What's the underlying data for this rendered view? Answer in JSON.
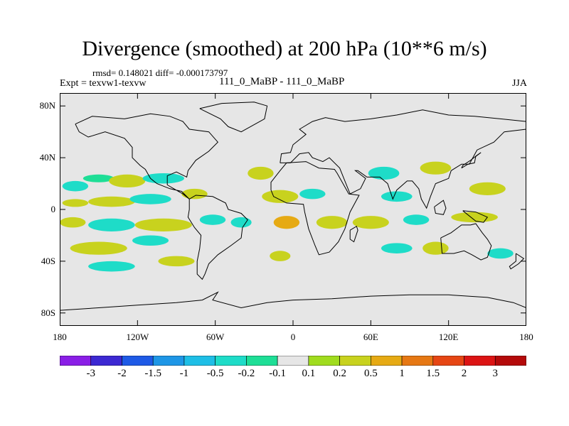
{
  "chart_data": {
    "type": "heatmap",
    "title": "Divergence (smoothed) at 200 hPa (10**6 m/s)",
    "stats_text": "rmsd= 0.148021 diff= -0.000173797",
    "experiment_text": "Expt = texvw1-texvw",
    "case_text": "111_0_MaBP - 111_0_MaBP",
    "season": "JJA",
    "xlim": [
      -180,
      180
    ],
    "ylim": [
      -90,
      90
    ],
    "x_ticks": [
      {
        "value": -180,
        "label": "180"
      },
      {
        "value": -120,
        "label": "120W"
      },
      {
        "value": -60,
        "label": "60W"
      },
      {
        "value": 0,
        "label": "0"
      },
      {
        "value": 60,
        "label": "60E"
      },
      {
        "value": 120,
        "label": "120E"
      },
      {
        "value": 180,
        "label": "180"
      }
    ],
    "y_ticks": [
      {
        "value": 80,
        "label": "80N"
      },
      {
        "value": 40,
        "label": "40N"
      },
      {
        "value": 0,
        "label": "0"
      },
      {
        "value": -40,
        "label": "40S"
      },
      {
        "value": -80,
        "label": "80S"
      }
    ],
    "colorbar": {
      "levels": [
        "-3",
        "-2",
        "-1.5",
        "-1",
        "-0.5",
        "-0.2",
        "-0.1",
        "0.1",
        "0.2",
        "0.5",
        "1",
        "1.5",
        "2",
        "3"
      ],
      "colors": [
        "#8a1ee6",
        "#3c28d2",
        "#1e5ae6",
        "#1e96e6",
        "#1ebee6",
        "#1edcc8",
        "#1ede96",
        "#e6e6e6",
        "#a0dc1e",
        "#c8d21e",
        "#e6aa14",
        "#e67814",
        "#e64614",
        "#dc1414",
        "#b40a0a"
      ]
    },
    "field_blobs": [
      {
        "lon": -168,
        "lat": 18,
        "rx": 10,
        "ry": 4,
        "level": -0.3
      },
      {
        "lon": -150,
        "lat": 24,
        "rx": 12,
        "ry": 3,
        "level": -0.2
      },
      {
        "lon": -128,
        "lat": 22,
        "rx": 14,
        "ry": 5,
        "level": 0.3
      },
      {
        "lon": -100,
        "lat": 24,
        "rx": 16,
        "ry": 4,
        "level": -0.3
      },
      {
        "lon": -168,
        "lat": 5,
        "rx": 10,
        "ry": 3,
        "level": 0.25
      },
      {
        "lon": -140,
        "lat": 6,
        "rx": 18,
        "ry": 4,
        "level": 0.3
      },
      {
        "lon": -110,
        "lat": 8,
        "rx": 16,
        "ry": 4,
        "level": -0.3
      },
      {
        "lon": -76,
        "lat": 12,
        "rx": 10,
        "ry": 4,
        "level": 0.3
      },
      {
        "lon": -170,
        "lat": -10,
        "rx": 10,
        "ry": 4,
        "level": 0.3
      },
      {
        "lon": -140,
        "lat": -12,
        "rx": 18,
        "ry": 5,
        "level": -0.3
      },
      {
        "lon": -100,
        "lat": -12,
        "rx": 22,
        "ry": 5,
        "level": 0.4
      },
      {
        "lon": -62,
        "lat": -8,
        "rx": 10,
        "ry": 4,
        "level": -0.5
      },
      {
        "lon": -150,
        "lat": -30,
        "rx": 22,
        "ry": 5,
        "level": 0.3
      },
      {
        "lon": -110,
        "lat": -24,
        "rx": 14,
        "ry": 4,
        "level": -0.3
      },
      {
        "lon": -140,
        "lat": -44,
        "rx": 18,
        "ry": 4,
        "level": -0.3
      },
      {
        "lon": -90,
        "lat": -40,
        "rx": 14,
        "ry": 4,
        "level": 0.3
      },
      {
        "lon": -25,
        "lat": 28,
        "rx": 10,
        "ry": 5,
        "level": 0.3
      },
      {
        "lon": -10,
        "lat": 10,
        "rx": 14,
        "ry": 5,
        "level": 0.4
      },
      {
        "lon": 15,
        "lat": 12,
        "rx": 10,
        "ry": 4,
        "level": -0.3
      },
      {
        "lon": -40,
        "lat": -10,
        "rx": 8,
        "ry": 4,
        "level": -0.5
      },
      {
        "lon": -5,
        "lat": -10,
        "rx": 10,
        "ry": 5,
        "level": 0.5
      },
      {
        "lon": 30,
        "lat": -10,
        "rx": 12,
        "ry": 5,
        "level": 0.3
      },
      {
        "lon": -10,
        "lat": -36,
        "rx": 8,
        "ry": 4,
        "level": 0.3
      },
      {
        "lon": 70,
        "lat": 28,
        "rx": 12,
        "ry": 5,
        "level": -0.3
      },
      {
        "lon": 110,
        "lat": 32,
        "rx": 12,
        "ry": 5,
        "level": 0.3
      },
      {
        "lon": 80,
        "lat": 10,
        "rx": 12,
        "ry": 4,
        "level": -0.3
      },
      {
        "lon": 150,
        "lat": 16,
        "rx": 14,
        "ry": 5,
        "level": 0.3
      },
      {
        "lon": 60,
        "lat": -10,
        "rx": 14,
        "ry": 5,
        "level": 0.3
      },
      {
        "lon": 95,
        "lat": -8,
        "rx": 10,
        "ry": 4,
        "level": -0.5
      },
      {
        "lon": 140,
        "lat": -6,
        "rx": 18,
        "ry": 4,
        "level": 0.3
      },
      {
        "lon": 80,
        "lat": -30,
        "rx": 12,
        "ry": 4,
        "level": -0.3
      },
      {
        "lon": 110,
        "lat": -30,
        "rx": 10,
        "ry": 5,
        "level": 0.3
      },
      {
        "lon": 160,
        "lat": -34,
        "rx": 10,
        "ry": 4,
        "level": -0.3
      }
    ],
    "coastlines": [
      {
        "name": "north-america",
        "points": [
          [
            -168,
            66
          ],
          [
            -155,
            72
          ],
          [
            -130,
            70
          ],
          [
            -110,
            74
          ],
          [
            -95,
            72
          ],
          [
            -85,
            68
          ],
          [
            -80,
            62
          ],
          [
            -65,
            60
          ],
          [
            -58,
            52
          ],
          [
            -65,
            45
          ],
          [
            -75,
            38
          ],
          [
            -81,
            30
          ],
          [
            -82,
            25
          ],
          [
            -90,
            29
          ],
          [
            -97,
            26
          ],
          [
            -97,
            19
          ],
          [
            -92,
            16
          ],
          [
            -85,
            12
          ],
          [
            -80,
            8
          ],
          [
            -86,
            14
          ],
          [
            -95,
            16
          ],
          [
            -105,
            20
          ],
          [
            -110,
            24
          ],
          [
            -114,
            31
          ],
          [
            -118,
            34
          ],
          [
            -124,
            40
          ],
          [
            -124,
            48
          ],
          [
            -130,
            55
          ],
          [
            -145,
            60
          ],
          [
            -158,
            56
          ],
          [
            -165,
            60
          ],
          [
            -168,
            66
          ]
        ]
      },
      {
        "name": "south-america",
        "points": [
          [
            -80,
            8
          ],
          [
            -75,
            11
          ],
          [
            -62,
            10
          ],
          [
            -52,
            5
          ],
          [
            -50,
            0
          ],
          [
            -40,
            -3
          ],
          [
            -35,
            -8
          ],
          [
            -39,
            -14
          ],
          [
            -40,
            -22
          ],
          [
            -48,
            -28
          ],
          [
            -58,
            -35
          ],
          [
            -65,
            -42
          ],
          [
            -68,
            -50
          ],
          [
            -70,
            -54
          ],
          [
            -74,
            -50
          ],
          [
            -74,
            -40
          ],
          [
            -72,
            -30
          ],
          [
            -71,
            -20
          ],
          [
            -76,
            -14
          ],
          [
            -81,
            -6
          ],
          [
            -80,
            0
          ],
          [
            -80,
            8
          ]
        ]
      },
      {
        "name": "greenland",
        "points": [
          [
            -72,
            78
          ],
          [
            -55,
            82
          ],
          [
            -30,
            83
          ],
          [
            -20,
            80
          ],
          [
            -22,
            70
          ],
          [
            -40,
            60
          ],
          [
            -50,
            64
          ],
          [
            -56,
            70
          ],
          [
            -72,
            78
          ]
        ]
      },
      {
        "name": "eurasia",
        "points": [
          [
            -10,
            36
          ],
          [
            -9,
            43
          ],
          [
            -2,
            44
          ],
          [
            0,
            50
          ],
          [
            5,
            54
          ],
          [
            10,
            58
          ],
          [
            5,
            62
          ],
          [
            15,
            68
          ],
          [
            25,
            71
          ],
          [
            40,
            68
          ],
          [
            60,
            70
          ],
          [
            80,
            73
          ],
          [
            100,
            77
          ],
          [
            120,
            73
          ],
          [
            140,
            72
          ],
          [
            160,
            70
          ],
          [
            180,
            68
          ],
          [
            180,
            62
          ],
          [
            163,
            60
          ],
          [
            155,
            52
          ],
          [
            142,
            46
          ],
          [
            136,
            35
          ],
          [
            130,
            35
          ],
          [
            122,
            30
          ],
          [
            120,
            24
          ],
          [
            110,
            20
          ],
          [
            106,
            10
          ],
          [
            103,
            1
          ],
          [
            99,
            8
          ],
          [
            97,
            16
          ],
          [
            92,
            22
          ],
          [
            88,
            22
          ],
          [
            80,
            15
          ],
          [
            77,
            8
          ],
          [
            73,
            20
          ],
          [
            67,
            25
          ],
          [
            57,
            25
          ],
          [
            50,
            30
          ],
          [
            48,
            30
          ],
          [
            56,
            24
          ],
          [
            52,
            16
          ],
          [
            44,
            12
          ],
          [
            36,
            32
          ],
          [
            28,
            40
          ],
          [
            23,
            37
          ],
          [
            15,
            40
          ],
          [
            12,
            44
          ],
          [
            5,
            43
          ],
          [
            -2,
            36
          ],
          [
            -10,
            36
          ]
        ]
      },
      {
        "name": "africa",
        "points": [
          [
            -17,
            15
          ],
          [
            -17,
            21
          ],
          [
            -10,
            30
          ],
          [
            -5,
            36
          ],
          [
            10,
            37
          ],
          [
            20,
            32
          ],
          [
            32,
            31
          ],
          [
            34,
            28
          ],
          [
            43,
            12
          ],
          [
            51,
            11
          ],
          [
            44,
            -2
          ],
          [
            40,
            -15
          ],
          [
            35,
            -25
          ],
          [
            28,
            -33
          ],
          [
            20,
            -35
          ],
          [
            17,
            -28
          ],
          [
            12,
            -15
          ],
          [
            9,
            -2
          ],
          [
            8,
            4
          ],
          [
            -5,
            5
          ],
          [
            -15,
            10
          ],
          [
            -17,
            15
          ]
        ]
      },
      {
        "name": "australia",
        "points": [
          [
            114,
            -22
          ],
          [
            122,
            -18
          ],
          [
            130,
            -12
          ],
          [
            137,
            -12
          ],
          [
            141,
            -11
          ],
          [
            146,
            -18
          ],
          [
            150,
            -23
          ],
          [
            153,
            -28
          ],
          [
            150,
            -37
          ],
          [
            145,
            -39
          ],
          [
            138,
            -35
          ],
          [
            132,
            -32
          ],
          [
            124,
            -34
          ],
          [
            115,
            -34
          ],
          [
            114,
            -22
          ]
        ]
      },
      {
        "name": "antarctica",
        "points": [
          [
            -180,
            -78
          ],
          [
            -150,
            -76
          ],
          [
            -120,
            -74
          ],
          [
            -90,
            -72
          ],
          [
            -70,
            -70
          ],
          [
            -58,
            -64
          ],
          [
            -62,
            -70
          ],
          [
            -40,
            -76
          ],
          [
            -20,
            -72
          ],
          [
            0,
            -70
          ],
          [
            30,
            -69
          ],
          [
            60,
            -67
          ],
          [
            90,
            -66
          ],
          [
            120,
            -66
          ],
          [
            150,
            -68
          ],
          [
            170,
            -72
          ],
          [
            180,
            -76
          ]
        ]
      },
      {
        "name": "madagascar",
        "points": [
          [
            44,
            -16
          ],
          [
            49,
            -13
          ],
          [
            50,
            -16
          ],
          [
            47,
            -25
          ],
          [
            44,
            -23
          ],
          [
            44,
            -16
          ]
        ]
      },
      {
        "name": "borneo",
        "points": [
          [
            109,
            2
          ],
          [
            116,
            7
          ],
          [
            118,
            1
          ],
          [
            116,
            -4
          ],
          [
            110,
            -3
          ],
          [
            109,
            2
          ]
        ]
      },
      {
        "name": "new-guinea",
        "points": [
          [
            131,
            -1
          ],
          [
            141,
            -2
          ],
          [
            150,
            -6
          ],
          [
            147,
            -10
          ],
          [
            141,
            -9
          ],
          [
            131,
            -1
          ]
        ]
      },
      {
        "name": "japan",
        "points": [
          [
            130,
            32
          ],
          [
            135,
            35
          ],
          [
            140,
            36
          ],
          [
            141,
            41
          ],
          [
            145,
            44
          ],
          [
            142,
            42
          ],
          [
            137,
            38
          ],
          [
            131,
            34
          ],
          [
            130,
            32
          ]
        ]
      },
      {
        "name": "new-zealand",
        "points": [
          [
            172,
            -34
          ],
          [
            178,
            -38
          ],
          [
            174,
            -42
          ],
          [
            168,
            -46
          ],
          [
            167,
            -44
          ],
          [
            172,
            -40
          ],
          [
            172,
            -34
          ]
        ]
      }
    ]
  }
}
